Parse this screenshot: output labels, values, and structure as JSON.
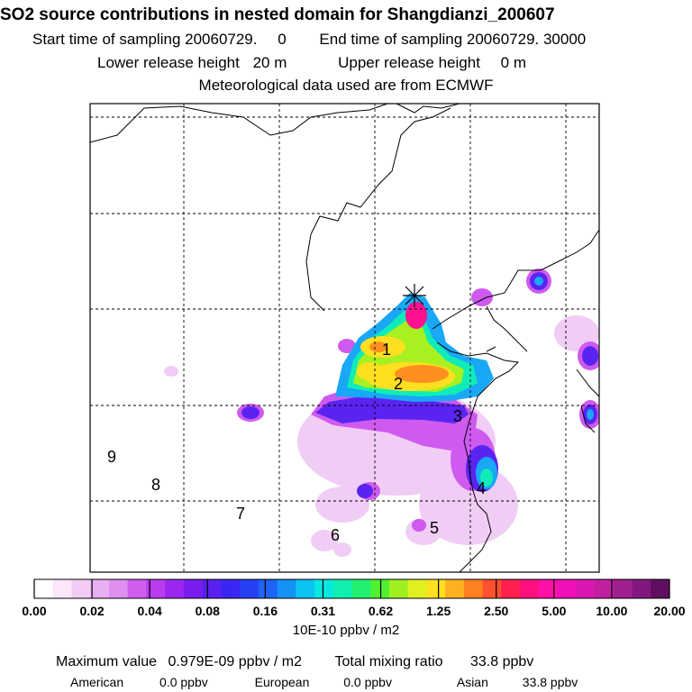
{
  "header": {
    "title": "SO2 source contributions in nested domain for Shangdianzi_200607",
    "start_label": "Start time of sampling 20060729.",
    "start_hour": "0",
    "end_label": "End time of sampling 20060729. 30000",
    "lower_label": "Lower release height",
    "lower_value": "20 m",
    "upper_label": "Upper release height",
    "upper_value": "0 m",
    "met_note": "Meteorological data used are from ECMWF"
  },
  "chart_data": {
    "type": "heatmap",
    "region_labels": [
      "1",
      "2",
      "3",
      "4",
      "5",
      "6",
      "7",
      "8",
      "9"
    ],
    "colorbar": {
      "ticks": [
        "0.00",
        "0.02",
        "0.04",
        "0.08",
        "0.16",
        "0.31",
        "0.62",
        "1.25",
        "2.50",
        "5.00",
        "10.00",
        "20.00"
      ],
      "colors": [
        "#ffffff",
        "#fbe6fb",
        "#f2ccf5",
        "#e8b0f2",
        "#df8ff0",
        "#d15cf0",
        "#b93cf0",
        "#9c28f0",
        "#7a1ef0",
        "#5a20f0",
        "#3a26f2",
        "#2840f4",
        "#1c63f6",
        "#1492f6",
        "#0cc3f3",
        "#08e8e0",
        "#10f0b0",
        "#20f070",
        "#50f030",
        "#a0f020",
        "#e0f020",
        "#ffe020",
        "#ffb020",
        "#ff8020",
        "#ff5030",
        "#ff2050",
        "#ff1080",
        "#ff10a8",
        "#f010b8",
        "#d818b0",
        "#c020a0",
        "#a02090",
        "#801880",
        "#600f60"
      ],
      "units": "10E-10 ppbv / m2"
    },
    "max_value": "0.979E-09 ppbv / m2",
    "total_mixing_ratio": "33.8 ppbv",
    "contributions": [
      {
        "name": "American",
        "value": "0.0 ppbv"
      },
      {
        "name": "European",
        "value": "0.0 ppbv"
      },
      {
        "name": "Asian",
        "value": "33.8 ppbv"
      }
    ],
    "hotspots": [
      {
        "lon": 0.56,
        "lat": 0.4,
        "level": 24
      },
      {
        "lon": 0.53,
        "lat": 0.52,
        "level": 22
      },
      {
        "lon": 0.62,
        "lat": 0.58,
        "level": 21
      },
      {
        "lon": 0.66,
        "lat": 0.66,
        "level": 12
      }
    ]
  },
  "footer": {
    "max_label": "Maximum value",
    "total_label": "Total mixing ratio"
  }
}
